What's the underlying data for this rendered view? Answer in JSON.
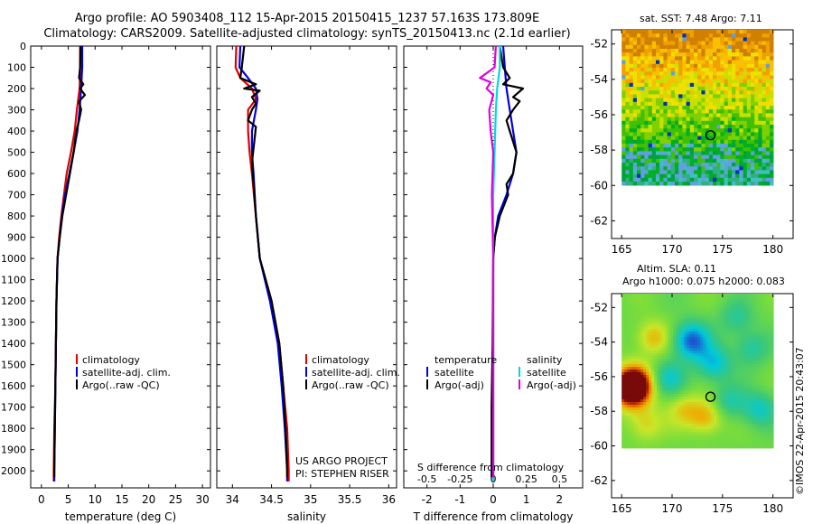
{
  "header": {
    "line1": "Argo profile: AO 5903408_112 15-Apr-2015 20150415_1237 57.163S 173.809E",
    "line2": "Climatology: CARS2009. Satellite-adjusted climatology: synTS_20150413.nc (2.1d earlier)"
  },
  "colors": {
    "clim": "#e00000",
    "sat": "#0000e0",
    "argo": "#000000",
    "satS": "#00d8e0",
    "argoS": "#e000e0"
  },
  "credit": "©IMOS 22-Apr-2015 20:43:07",
  "project": {
    "line1": "US ARGO PROJECT",
    "line2": "PI: STEPHEN RISER"
  },
  "legend": {
    "climatology": "climatology",
    "satellite_adj": "satellite-adj. clim.",
    "argo_raw": "Argo(..raw -QC)"
  },
  "diff_legend": {
    "temperature": "temperature",
    "salinity": "salinity",
    "satellite": "satellite",
    "argo_adj": "Argo(-adj)"
  },
  "sst_map": {
    "title": "sat. SST: 7.48 Argo: 7.11"
  },
  "sla_map": {
    "title1": "Altim. SLA: 0.11",
    "title2": "Argo h1000: 0.075 h2000: 0.083"
  },
  "chart_data": [
    {
      "type": "line",
      "id": "temperature",
      "xlabel": "temperature (deg C)",
      "ylabel": "",
      "xlim": [
        -2,
        31.5
      ],
      "ylim": [
        2080,
        0
      ],
      "xticks": [
        0,
        5,
        10,
        15,
        20,
        25,
        30
      ],
      "yticks": [
        0,
        100,
        200,
        300,
        400,
        500,
        600,
        700,
        800,
        900,
        1000,
        1100,
        1200,
        1300,
        1400,
        1500,
        1600,
        1700,
        1800,
        1900,
        2000
      ],
      "series": [
        {
          "name": "climatology",
          "color": "clim",
          "points": [
            [
              7.2,
              0
            ],
            [
              7.2,
              100
            ],
            [
              7.1,
              200
            ],
            [
              6.6,
              300
            ],
            [
              6.2,
              400
            ],
            [
              5.5,
              500
            ],
            [
              4.7,
              600
            ],
            [
              4.2,
              700
            ],
            [
              3.7,
              800
            ],
            [
              3.3,
              900
            ],
            [
              3.0,
              1000
            ],
            [
              2.8,
              1200
            ],
            [
              2.7,
              1400
            ],
            [
              2.6,
              1600
            ],
            [
              2.4,
              1800
            ],
            [
              2.3,
              2000
            ],
            [
              2.3,
              2050
            ]
          ]
        },
        {
          "name": "satellite-adj. clim.",
          "color": "sat",
          "points": [
            [
              7.6,
              0
            ],
            [
              7.6,
              100
            ],
            [
              7.4,
              200
            ],
            [
              7.1,
              300
            ],
            [
              6.7,
              400
            ],
            [
              6.0,
              500
            ],
            [
              5.2,
              600
            ],
            [
              4.4,
              700
            ],
            [
              3.8,
              800
            ],
            [
              3.4,
              900
            ],
            [
              3.0,
              1000
            ],
            [
              2.8,
              1200
            ],
            [
              2.7,
              1400
            ],
            [
              2.6,
              1600
            ],
            [
              2.5,
              1800
            ],
            [
              2.4,
              2000
            ],
            [
              2.4,
              2050
            ]
          ]
        },
        {
          "name": "Argo(..raw -QC)",
          "color": "argo",
          "points": [
            [
              7.3,
              0
            ],
            [
              7.2,
              100
            ],
            [
              7.0,
              150
            ],
            [
              7.8,
              180
            ],
            [
              7.2,
              200
            ],
            [
              8.1,
              230
            ],
            [
              7.0,
              260
            ],
            [
              7.4,
              300
            ],
            [
              7.0,
              350
            ],
            [
              6.5,
              400
            ],
            [
              6.0,
              500
            ],
            [
              5.3,
              600
            ],
            [
              4.6,
              700
            ],
            [
              3.9,
              800
            ],
            [
              3.4,
              900
            ],
            [
              3.0,
              1000
            ],
            [
              2.8,
              1200
            ],
            [
              2.7,
              1400
            ],
            [
              2.6,
              1600
            ],
            [
              2.5,
              1800
            ],
            [
              2.4,
              2000
            ],
            [
              2.4,
              2030
            ]
          ]
        }
      ],
      "legend": [
        "climatology",
        "satellite-adj. clim.",
        "Argo(..raw -QC)"
      ]
    },
    {
      "type": "line",
      "id": "salinity",
      "xlabel": "salinity",
      "ylabel": "",
      "xlim": [
        33.8,
        36.1
      ],
      "ylim": [
        2080,
        0
      ],
      "xticks": [
        34,
        34.5,
        35,
        35.5,
        36
      ],
      "series": [
        {
          "name": "climatology",
          "color": "clim",
          "points": [
            [
              34.05,
              0
            ],
            [
              34.04,
              100
            ],
            [
              34.1,
              150
            ],
            [
              34.25,
              200
            ],
            [
              34.3,
              250
            ],
            [
              34.2,
              300
            ],
            [
              34.2,
              400
            ],
            [
              34.22,
              500
            ],
            [
              34.25,
              600
            ],
            [
              34.3,
              800
            ],
            [
              34.35,
              1000
            ],
            [
              34.5,
              1200
            ],
            [
              34.6,
              1400
            ],
            [
              34.65,
              1600
            ],
            [
              34.7,
              1800
            ],
            [
              34.72,
              2000
            ],
            [
              34.72,
              2050
            ]
          ]
        },
        {
          "name": "satellite-adj. clim.",
          "color": "sat",
          "points": [
            [
              34.1,
              0
            ],
            [
              34.09,
              100
            ],
            [
              34.2,
              150
            ],
            [
              34.3,
              200
            ],
            [
              34.32,
              250
            ],
            [
              34.3,
              300
            ],
            [
              34.25,
              400
            ],
            [
              34.25,
              500
            ],
            [
              34.27,
              600
            ],
            [
              34.3,
              800
            ],
            [
              34.35,
              1000
            ],
            [
              34.48,
              1200
            ],
            [
              34.58,
              1400
            ],
            [
              34.63,
              1600
            ],
            [
              34.67,
              1800
            ],
            [
              34.7,
              2000
            ],
            [
              34.7,
              2050
            ]
          ]
        },
        {
          "name": "Argo(..raw -QC)",
          "color": "argo",
          "points": [
            [
              34.15,
              0
            ],
            [
              34.12,
              100
            ],
            [
              34.1,
              150
            ],
            [
              34.3,
              180
            ],
            [
              34.15,
              200
            ],
            [
              34.35,
              210
            ],
            [
              34.25,
              240
            ],
            [
              34.3,
              270
            ],
            [
              34.25,
              300
            ],
            [
              34.2,
              350
            ],
            [
              34.3,
              380
            ],
            [
              34.28,
              450
            ],
            [
              34.25,
              550
            ],
            [
              34.27,
              650
            ],
            [
              34.3,
              800
            ],
            [
              34.35,
              1000
            ],
            [
              34.5,
              1200
            ],
            [
              34.6,
              1400
            ],
            [
              34.65,
              1600
            ],
            [
              34.68,
              1800
            ],
            [
              34.7,
              2000
            ],
            [
              34.7,
              2030
            ]
          ]
        }
      ],
      "legend": [
        "climatology",
        "satellite-adj. clim.",
        "Argo(..raw -QC)"
      ]
    },
    {
      "type": "line",
      "id": "difference",
      "xlabel": "T difference from climatology",
      "xlabel2": "S difference from climatology",
      "xlim": [
        -2.7,
        2.7
      ],
      "ylim": [
        2080,
        0
      ],
      "xticks": [
        -2,
        -1,
        0,
        1,
        2
      ],
      "xticks2": {
        "labels": [
          "-0.5",
          "-0.25",
          "0",
          "0.25",
          "0.5"
        ],
        "values": [
          -0.5,
          -0.25,
          0,
          0.25,
          0.5
        ]
      },
      "s_scale": 4,
      "series": [
        {
          "name": "temperature satellite",
          "color": "sat",
          "scale": "T",
          "points": [
            [
              0.3,
              0
            ],
            [
              0.35,
              100
            ],
            [
              0.4,
              200
            ],
            [
              0.5,
              300
            ],
            [
              0.6,
              400
            ],
            [
              0.7,
              500
            ],
            [
              0.6,
              600
            ],
            [
              0.4,
              700
            ],
            [
              0.15,
              800
            ],
            [
              0.05,
              900
            ],
            [
              0,
              1000
            ],
            [
              0,
              1200
            ],
            [
              0,
              1600
            ],
            [
              0,
              2050
            ]
          ]
        },
        {
          "name": "temperature Argo(-adj)",
          "color": "argo",
          "scale": "T",
          "points": [
            [
              0.2,
              0
            ],
            [
              0.3,
              100
            ],
            [
              0.5,
              150
            ],
            [
              0.3,
              180
            ],
            [
              0.9,
              200
            ],
            [
              0.6,
              240
            ],
            [
              0.8,
              260
            ],
            [
              0.6,
              300
            ],
            [
              0.4,
              350
            ],
            [
              0.5,
              400
            ],
            [
              0.7,
              500
            ],
            [
              0.6,
              600
            ],
            [
              0.4,
              650
            ],
            [
              0.45,
              700
            ],
            [
              0.2,
              800
            ],
            [
              0.05,
              900
            ],
            [
              0,
              1000
            ],
            [
              -0.02,
              1400
            ],
            [
              -0.05,
              1700
            ],
            [
              -0.05,
              2030
            ]
          ]
        },
        {
          "name": "salinity satellite",
          "color": "satS",
          "scale": "S",
          "points": [
            [
              0.05,
              0
            ],
            [
              0.05,
              100
            ],
            [
              0.03,
              200
            ],
            [
              0.02,
              300
            ],
            [
              0.01,
              500
            ],
            [
              0,
              700
            ],
            [
              0,
              1000
            ],
            [
              0,
              1600
            ],
            [
              0,
              2050
            ]
          ]
        },
        {
          "name": "salinity Argo(-adj)",
          "color": "argoS",
          "scale": "S",
          "points": [
            [
              0.02,
              0
            ],
            [
              0.01,
              100
            ],
            [
              -0.1,
              150
            ],
            [
              -0.02,
              170
            ],
            [
              -0.05,
              200
            ],
            [
              0,
              230
            ],
            [
              -0.03,
              300
            ],
            [
              -0.02,
              400
            ],
            [
              0,
              500
            ],
            [
              -0.01,
              700
            ],
            [
              0,
              1000
            ],
            [
              0,
              2030
            ]
          ]
        }
      ]
    },
    {
      "type": "heatmap",
      "id": "sst_map",
      "xlim": [
        164,
        182
      ],
      "ylim": [
        -63,
        -51.2
      ],
      "data_xlim": [
        165,
        180
      ],
      "data_ylim": [
        -60,
        -51.2
      ],
      "xticks": [
        165,
        170,
        175,
        180
      ],
      "yticks": [
        -52,
        -54,
        -56,
        -58,
        -60,
        -62
      ],
      "argo_position": [
        173.809,
        -57.163
      ]
    },
    {
      "type": "heatmap",
      "id": "sla_map",
      "xlim": [
        164,
        182
      ],
      "ylim": [
        -63,
        -51.2
      ],
      "data_xlim": [
        165,
        180
      ],
      "data_ylim": [
        -60,
        -51.2
      ],
      "xticks": [
        165,
        170,
        175,
        180
      ],
      "yticks": [
        -52,
        -54,
        -56,
        -58,
        -60,
        -62
      ],
      "argo_position": [
        173.809,
        -57.163
      ]
    }
  ]
}
